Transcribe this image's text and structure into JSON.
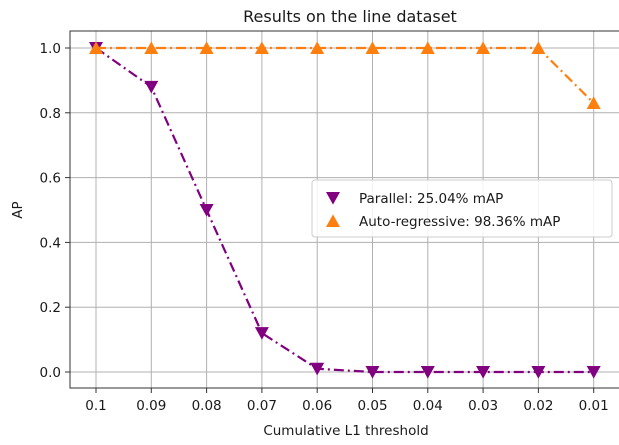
{
  "chart_data": {
    "type": "line",
    "title": "Results on the line dataset",
    "xlabel": "Cumulative L1 threshold",
    "ylabel": "AP",
    "categories": [
      "0.1",
      "0.09",
      "0.08",
      "0.07",
      "0.06",
      "0.05",
      "0.04",
      "0.03",
      "0.02",
      "0.01"
    ],
    "ylim": [
      -0.05,
      1.05
    ],
    "yticks": [
      0.0,
      0.2,
      0.4,
      0.6,
      0.8,
      1.0
    ],
    "ytick_labels": [
      "0.0",
      "0.2",
      "0.4",
      "0.6",
      "0.8",
      "1.0"
    ],
    "grid": true,
    "legend_position": "center-right",
    "series": [
      {
        "name": "Parallel: 25.04% mAP",
        "color": "#800080",
        "marker": "triangle-down",
        "linestyle": "dashdot",
        "values": [
          1.0,
          0.88,
          0.5,
          0.12,
          0.01,
          0.0,
          0.0,
          0.0,
          0.0,
          0.0
        ]
      },
      {
        "name": "Auto-regressive: 98.36% mAP",
        "color": "#ff7f0e",
        "marker": "triangle-up",
        "linestyle": "dashdot",
        "values": [
          1.0,
          1.0,
          1.0,
          1.0,
          1.0,
          1.0,
          1.0,
          1.0,
          1.0,
          0.83
        ]
      }
    ]
  }
}
